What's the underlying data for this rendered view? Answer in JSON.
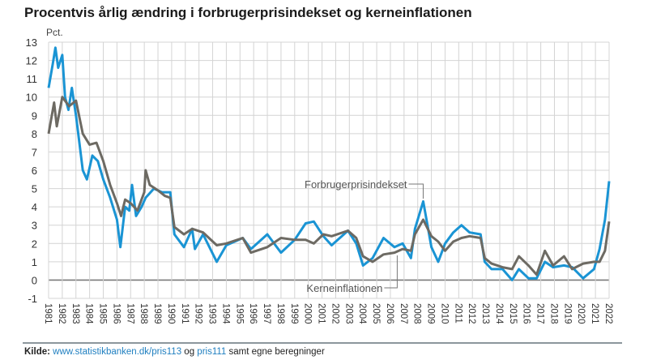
{
  "title": "Procentvis årlig ændring i forbrugerprisindekset og kerneinflationen",
  "source": {
    "label": "Kilde:",
    "link1": "www.statistikbanken.dk/pris113",
    "mid": " og ",
    "link2": "pris111",
    "tail": " samt egne beregninger"
  },
  "chart_data": {
    "type": "line",
    "title": "Procentvis årlig ændring i forbrugerprisindekset og kerneinflationen",
    "ylabel": "Pct.",
    "xlabel": "",
    "ylim": [
      -1,
      13
    ],
    "yticks": [
      -1,
      0,
      1,
      2,
      3,
      4,
      5,
      6,
      7,
      8,
      9,
      10,
      11,
      12,
      13
    ],
    "xlim": [
      1981,
      2022
    ],
    "xticks": [
      "1981",
      "1982",
      "1983",
      "1984",
      "1985",
      "1986",
      "1987",
      "1988",
      "1989",
      "1990",
      "1991",
      "1992",
      "1993",
      "1994",
      "1995",
      "1996",
      "1997",
      "1998",
      "1999",
      "2000",
      "2001",
      "2002",
      "2003",
      "2004",
      "2005",
      "2006",
      "2007",
      "2008",
      "2009",
      "2010",
      "2011",
      "2012",
      "2013",
      "2014",
      "2015",
      "2016",
      "2017",
      "2018",
      "2019",
      "2020",
      "2021",
      "2022"
    ],
    "grid": true,
    "legend": "inline annotations",
    "series": [
      {
        "name": "Forbrugerprisindekset",
        "color": "#1a94d4",
        "points": [
          [
            1981.0,
            10.5
          ],
          [
            1981.3,
            11.8
          ],
          [
            1981.5,
            12.7
          ],
          [
            1981.7,
            11.6
          ],
          [
            1982.0,
            12.3
          ],
          [
            1982.2,
            10.0
          ],
          [
            1982.45,
            9.3
          ],
          [
            1982.7,
            10.5
          ],
          [
            1983.0,
            9.0
          ],
          [
            1983.25,
            7.5
          ],
          [
            1983.5,
            6.0
          ],
          [
            1983.8,
            5.5
          ],
          [
            1984.2,
            6.8
          ],
          [
            1984.6,
            6.5
          ],
          [
            1985.0,
            5.5
          ],
          [
            1985.5,
            4.5
          ],
          [
            1986.0,
            3.3
          ],
          [
            1986.25,
            1.8
          ],
          [
            1986.6,
            4.0
          ],
          [
            1986.9,
            3.8
          ],
          [
            1987.1,
            5.2
          ],
          [
            1987.4,
            3.5
          ],
          [
            1987.8,
            4.0
          ],
          [
            1988.1,
            4.5
          ],
          [
            1988.7,
            5.0
          ],
          [
            1989.3,
            4.8
          ],
          [
            1989.9,
            4.8
          ],
          [
            1990.2,
            2.5
          ],
          [
            1990.9,
            1.8
          ],
          [
            1991.5,
            2.8
          ],
          [
            1991.7,
            1.7
          ],
          [
            1992.3,
            2.5
          ],
          [
            1993.3,
            1.0
          ],
          [
            1994.0,
            1.9
          ],
          [
            1995.2,
            2.3
          ],
          [
            1995.8,
            1.7
          ],
          [
            1997.0,
            2.5
          ],
          [
            1998.0,
            1.5
          ],
          [
            1999.0,
            2.2
          ],
          [
            1999.8,
            3.1
          ],
          [
            2000.4,
            3.2
          ],
          [
            2001.1,
            2.4
          ],
          [
            2001.7,
            1.9
          ],
          [
            2002.9,
            2.7
          ],
          [
            2003.5,
            2.0
          ],
          [
            2004.0,
            0.8
          ],
          [
            2004.7,
            1.2
          ],
          [
            2005.5,
            2.3
          ],
          [
            2006.3,
            1.8
          ],
          [
            2006.9,
            2.0
          ],
          [
            2007.5,
            1.2
          ],
          [
            2007.8,
            2.8
          ],
          [
            2008.4,
            4.3
          ],
          [
            2009.0,
            1.8
          ],
          [
            2009.5,
            1.0
          ],
          [
            2010.0,
            2.0
          ],
          [
            2010.6,
            2.6
          ],
          [
            2011.2,
            3.0
          ],
          [
            2011.8,
            2.6
          ],
          [
            2012.6,
            2.5
          ],
          [
            2012.9,
            1.0
          ],
          [
            2013.4,
            0.6
          ],
          [
            2014.2,
            0.6
          ],
          [
            2014.9,
            0.0
          ],
          [
            2015.4,
            0.6
          ],
          [
            2016.1,
            0.1
          ],
          [
            2016.7,
            0.1
          ],
          [
            2017.3,
            1.0
          ],
          [
            2017.9,
            0.7
          ],
          [
            2018.7,
            0.8
          ],
          [
            2019.3,
            0.7
          ],
          [
            2020.1,
            0.1
          ],
          [
            2020.9,
            0.6
          ],
          [
            2021.3,
            1.7
          ],
          [
            2021.7,
            3.3
          ],
          [
            2022.0,
            5.4
          ]
        ]
      },
      {
        "name": "Kerneinflationen",
        "color": "#6d6a63",
        "points": [
          [
            1981.0,
            8.0
          ],
          [
            1981.4,
            9.7
          ],
          [
            1981.6,
            8.4
          ],
          [
            1982.0,
            10.0
          ],
          [
            1982.5,
            9.5
          ],
          [
            1983.0,
            9.8
          ],
          [
            1983.5,
            8.0
          ],
          [
            1984.0,
            7.4
          ],
          [
            1984.5,
            7.5
          ],
          [
            1985.0,
            6.5
          ],
          [
            1985.5,
            5.2
          ],
          [
            1986.0,
            4.2
          ],
          [
            1986.3,
            3.5
          ],
          [
            1986.6,
            4.4
          ],
          [
            1987.0,
            4.2
          ],
          [
            1987.5,
            3.8
          ],
          [
            1988.0,
            4.8
          ],
          [
            1988.1,
            6.0
          ],
          [
            1988.4,
            5.2
          ],
          [
            1989.0,
            4.9
          ],
          [
            1989.5,
            4.6
          ],
          [
            1989.9,
            4.5
          ],
          [
            1990.2,
            2.9
          ],
          [
            1990.9,
            2.5
          ],
          [
            1991.5,
            2.8
          ],
          [
            1992.3,
            2.6
          ],
          [
            1993.3,
            1.9
          ],
          [
            1994.0,
            2.0
          ],
          [
            1995.2,
            2.3
          ],
          [
            1995.8,
            1.5
          ],
          [
            1997.0,
            1.8
          ],
          [
            1998.0,
            2.3
          ],
          [
            1999.0,
            2.2
          ],
          [
            1999.8,
            2.2
          ],
          [
            2000.4,
            2.0
          ],
          [
            2001.1,
            2.5
          ],
          [
            2001.7,
            2.4
          ],
          [
            2002.9,
            2.7
          ],
          [
            2003.5,
            2.3
          ],
          [
            2004.0,
            1.3
          ],
          [
            2004.7,
            1.0
          ],
          [
            2005.5,
            1.4
          ],
          [
            2006.3,
            1.5
          ],
          [
            2006.9,
            1.7
          ],
          [
            2007.5,
            1.6
          ],
          [
            2007.8,
            2.5
          ],
          [
            2008.4,
            3.3
          ],
          [
            2009.0,
            2.4
          ],
          [
            2009.5,
            2.1
          ],
          [
            2010.0,
            1.6
          ],
          [
            2010.6,
            2.1
          ],
          [
            2011.2,
            2.3
          ],
          [
            2011.8,
            2.4
          ],
          [
            2012.6,
            2.3
          ],
          [
            2012.9,
            1.2
          ],
          [
            2013.4,
            0.9
          ],
          [
            2014.2,
            0.7
          ],
          [
            2014.9,
            0.6
          ],
          [
            2015.4,
            1.3
          ],
          [
            2016.1,
            0.8
          ],
          [
            2016.7,
            0.3
          ],
          [
            2017.3,
            1.6
          ],
          [
            2017.9,
            0.8
          ],
          [
            2018.7,
            1.3
          ],
          [
            2019.3,
            0.6
          ],
          [
            2020.1,
            0.9
          ],
          [
            2020.9,
            1.0
          ],
          [
            2021.3,
            1.0
          ],
          [
            2021.7,
            1.6
          ],
          [
            2022.0,
            3.2
          ]
        ]
      }
    ],
    "annotations": [
      {
        "text": "Forbrugerprisindekset",
        "series": "Forbrugerprisindekset",
        "at_year": 2008.4
      },
      {
        "text": "Kerneinflationen",
        "series": "Kerneinflationen",
        "at_year": 2006.5
      }
    ]
  }
}
